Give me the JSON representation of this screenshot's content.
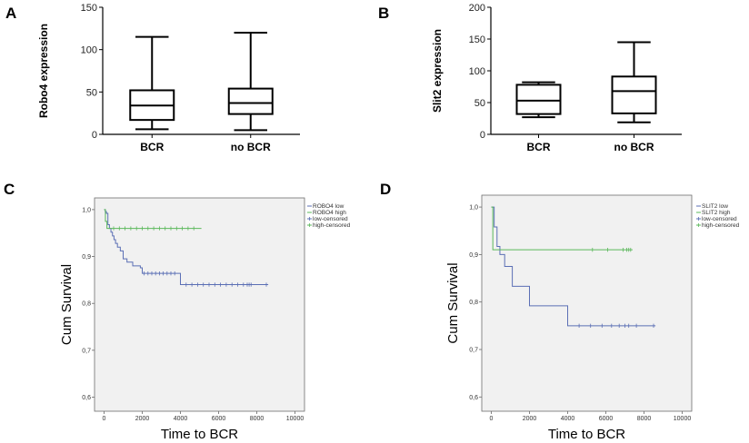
{
  "chart_data": [
    {
      "panel": "A",
      "type": "box",
      "ylabel": "Robo4  expression",
      "ylim": [
        0,
        150
      ],
      "yticks": [
        0,
        50,
        100,
        150
      ],
      "categories": [
        "BCR",
        "no BCR"
      ],
      "boxes": [
        {
          "min": 6,
          "q1": 17,
          "median": 34,
          "q3": 52,
          "max": 115
        },
        {
          "min": 5,
          "q1": 24,
          "median": 37,
          "q3": 54,
          "max": 120
        }
      ]
    },
    {
      "panel": "B",
      "type": "box",
      "ylabel": "Slit2  expression",
      "ylim": [
        0,
        200
      ],
      "yticks": [
        0,
        50,
        100,
        150,
        200
      ],
      "categories": [
        "BCR",
        "no BCR"
      ],
      "boxes": [
        {
          "min": 27,
          "q1": 32,
          "median": 53,
          "q3": 78,
          "max": 82
        },
        {
          "min": 19,
          "q1": 33,
          "median": 68,
          "q3": 91,
          "max": 145
        }
      ]
    },
    {
      "panel": "C",
      "type": "line",
      "xlabel": "Time to BCR",
      "ylabel": "Cum Survival",
      "xlim": [
        -500,
        10500
      ],
      "ylim": [
        0.57,
        1.025
      ],
      "xticks": [
        0,
        2000,
        4000,
        6000,
        8000,
        10000
      ],
      "yticks": [
        0.6,
        0.7,
        0.8,
        0.9,
        1.0
      ],
      "ytick_labels": [
        "0,6",
        "0,7",
        "0,8",
        "0,9",
        "1,0"
      ],
      "legend": [
        "ROBO4 low",
        "ROBO4 high",
        "low-censored",
        "high-censored"
      ],
      "series": [
        {
          "name": "ROBO4 low",
          "color": "#5b6fb5",
          "x": [
            0,
            60,
            120,
            200,
            280,
            360,
            440,
            520,
            600,
            700,
            850,
            1000,
            1200,
            1500,
            1900,
            2000,
            3900,
            4000,
            8600
          ],
          "y": [
            1.0,
            0.996,
            0.992,
            0.968,
            0.96,
            0.952,
            0.944,
            0.936,
            0.928,
            0.92,
            0.912,
            0.895,
            0.888,
            0.88,
            0.876,
            0.864,
            0.864,
            0.84,
            0.84
          ],
          "censored_x": [
            2100,
            2300,
            2500,
            2700,
            2900,
            3100,
            3300,
            3500,
            3700,
            4300,
            4600,
            4900,
            5200,
            5500,
            5800,
            6100,
            6400,
            6700,
            7000,
            7300,
            7500,
            7600,
            7700,
            8500
          ]
        },
        {
          "name": "ROBO4 high",
          "color": "#5bb85b",
          "x": [
            0,
            70,
            150,
            5100
          ],
          "y": [
            1.0,
            0.975,
            0.96,
            0.96
          ],
          "censored_x": [
            500,
            800,
            1100,
            1400,
            1700,
            2000,
            2300,
            2600,
            2900,
            3200,
            3500,
            3800,
            4100,
            4400,
            4700
          ]
        }
      ]
    },
    {
      "panel": "D",
      "type": "line",
      "xlabel": "Time to BCR",
      "ylabel": "Cum Survival",
      "xlim": [
        -500,
        10500
      ],
      "ylim": [
        0.57,
        1.025
      ],
      "xticks": [
        0,
        2000,
        4000,
        6000,
        8000,
        10000
      ],
      "yticks": [
        0.6,
        0.7,
        0.8,
        0.9,
        1.0
      ],
      "ytick_labels": [
        "0,6",
        "0,7",
        "0,8",
        "0,9",
        "1,0"
      ],
      "legend": [
        "SLIT2 low",
        "SLIT2 high",
        "low-censored",
        "high-censored"
      ],
      "series": [
        {
          "name": "SLIT2 low",
          "color": "#5b6fb5",
          "x": [
            0,
            150,
            300,
            450,
            700,
            1100,
            2000,
            3900,
            4000,
            8600
          ],
          "y": [
            1.0,
            0.958,
            0.917,
            0.9,
            0.875,
            0.833,
            0.792,
            0.792,
            0.75,
            0.75
          ],
          "censored_x": [
            4600,
            5200,
            5800,
            6300,
            6700,
            7000,
            7200,
            7600,
            8500
          ]
        },
        {
          "name": "SLIT2 high",
          "color": "#5bb85b",
          "x": [
            0,
            80,
            7400
          ],
          "y": [
            1.0,
            0.91,
            0.91
          ],
          "censored_x": [
            5300,
            6100,
            6900,
            7100,
            7200,
            7300
          ]
        }
      ]
    }
  ],
  "panel_labels": [
    "A",
    "B",
    "C",
    "D"
  ]
}
